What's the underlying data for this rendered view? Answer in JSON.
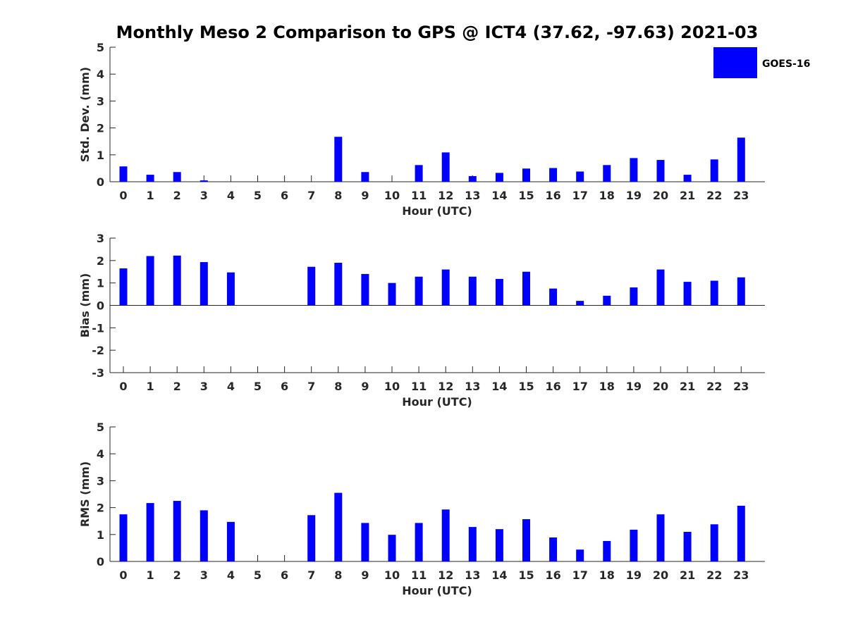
{
  "title": "Monthly Meso 2 Comparison to GPS @ ICT4 (37.62, -97.63) 2021-03",
  "legend": {
    "label": "GOES-16",
    "placement": "top-right",
    "color": "#0000ff"
  },
  "bar_color": "#0000ff",
  "chart_data": [
    {
      "type": "bar",
      "xlabel": "Hour (UTC)",
      "ylabel": "Std. Dev. (mm)",
      "ylim": [
        0,
        5
      ],
      "yticks": [
        "0",
        "1",
        "2",
        "3",
        "4",
        "5"
      ],
      "categories": [
        "0",
        "1",
        "2",
        "3",
        "4",
        "5",
        "6",
        "7",
        "8",
        "9",
        "10",
        "11",
        "12",
        "13",
        "14",
        "15",
        "16",
        "17",
        "18",
        "19",
        "20",
        "21",
        "22",
        "23"
      ],
      "series": [
        {
          "name": "GOES-16",
          "values": [
            0.57,
            0.26,
            0.36,
            0.05,
            0,
            0,
            0,
            0,
            1.67,
            0.36,
            0,
            0.62,
            1.09,
            0.21,
            0.33,
            0.49,
            0.51,
            0.38,
            0.62,
            0.88,
            0.81,
            0.26,
            0.83,
            1.64
          ]
        }
      ]
    },
    {
      "type": "bar",
      "xlabel": "Hour (UTC)",
      "ylabel": "Bias (mm)",
      "ylim": [
        -3,
        3
      ],
      "yticks": [
        "-3",
        "-2",
        "-1",
        "0",
        "1",
        "2",
        "3"
      ],
      "categories": [
        "0",
        "1",
        "2",
        "3",
        "4",
        "5",
        "6",
        "7",
        "8",
        "9",
        "10",
        "11",
        "12",
        "13",
        "14",
        "15",
        "16",
        "17",
        "18",
        "19",
        "20",
        "21",
        "22",
        "23"
      ],
      "series": [
        {
          "name": "GOES-16",
          "values": [
            1.65,
            2.2,
            2.22,
            1.93,
            1.47,
            0,
            0,
            1.72,
            1.9,
            1.4,
            1.0,
            1.28,
            1.6,
            1.28,
            1.18,
            1.5,
            0.75,
            0.2,
            0.43,
            0.8,
            1.6,
            1.05,
            1.1,
            1.25
          ]
        }
      ]
    },
    {
      "type": "bar",
      "xlabel": "Hour (UTC)",
      "ylabel": "RMS (mm)",
      "ylim": [
        0,
        5
      ],
      "yticks": [
        "0",
        "1",
        "2",
        "3",
        "4",
        "5"
      ],
      "categories": [
        "0",
        "1",
        "2",
        "3",
        "4",
        "5",
        "6",
        "7",
        "8",
        "9",
        "10",
        "11",
        "12",
        "13",
        "14",
        "15",
        "16",
        "17",
        "18",
        "19",
        "20",
        "21",
        "22",
        "23"
      ],
      "series": [
        {
          "name": "GOES-16",
          "values": [
            1.75,
            2.17,
            2.25,
            1.9,
            1.47,
            0,
            0,
            1.72,
            2.55,
            1.43,
            0.99,
            1.43,
            1.93,
            1.28,
            1.2,
            1.57,
            0.89,
            0.44,
            0.76,
            1.18,
            1.75,
            1.1,
            1.38,
            2.07
          ]
        }
      ]
    }
  ]
}
